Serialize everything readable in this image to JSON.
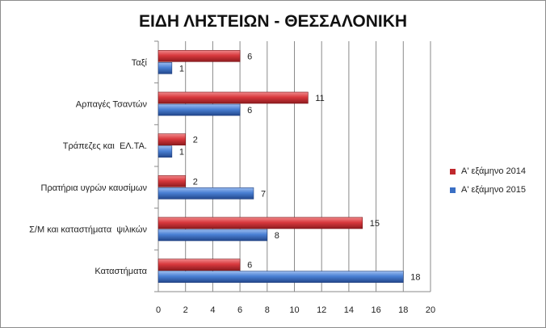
{
  "chart_data": {
    "type": "bar",
    "orientation": "horizontal",
    "title": "ΕΙΔΗ ΛΗΣΤΕΙΩΝ - ΘΕΣΣΑΛΟΝΙΚΗ",
    "xlabel": "",
    "ylabel": "",
    "categories": [
      "Ταξί",
      "Αρπαγές Τσαντών",
      "Τράπεζες και  ΕΛ.ΤΑ.",
      "Πρατήρια υγρών καυσίμων",
      "Σ/Μ και καταστήματα  ψιλικών",
      "Καταστήματα"
    ],
    "series": [
      {
        "name": "Α' εξάμηνο 2014",
        "color": "#c0282d",
        "values": [
          6,
          11,
          2,
          2,
          15,
          6
        ]
      },
      {
        "name": "Α' εξάμηνο 2015",
        "color": "#3a6fc4",
        "values": [
          1,
          6,
          1,
          7,
          8,
          18
        ]
      }
    ],
    "xlim": [
      0,
      20
    ],
    "xticks": [
      0,
      2,
      4,
      6,
      8,
      10,
      12,
      14,
      16,
      18,
      20
    ],
    "grid": "vertical",
    "legend": "right"
  }
}
